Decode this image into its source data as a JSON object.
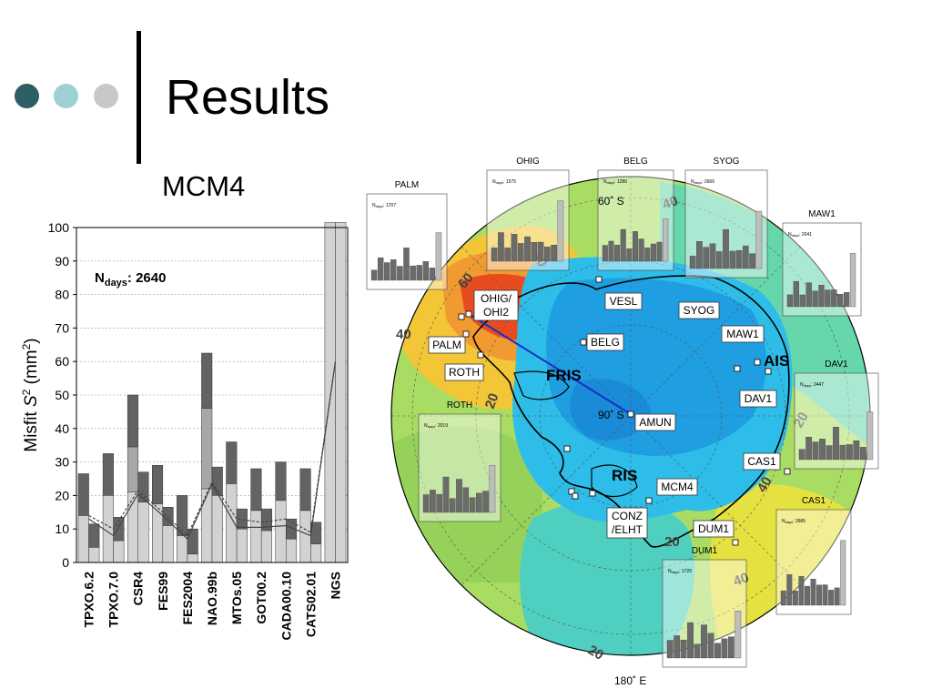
{
  "slide": {
    "title": "Results"
  },
  "chart_data": {
    "type": "bar",
    "title": "MCM4",
    "annotation": "N_days: 2640",
    "annotation_main": "N",
    "annotation_sub": "days",
    "annotation_rest": ": 2640",
    "ylabel": "Misfit S² (mm²)",
    "ylabel_main": "Misfit ",
    "ylabel_var": "S",
    "ylabel_sup": "2",
    "ylabel_units": " (mm",
    "ylabel_close": ")",
    "xlabel": "",
    "ylim": [
      0,
      100
    ],
    "yticks": [
      0,
      10,
      20,
      30,
      40,
      50,
      60,
      70,
      80,
      90,
      100
    ],
    "grid": true,
    "categories": [
      "TPXO.6.2",
      "TPXO.7.0",
      "CSR4",
      "FES99",
      "FES2004",
      "NAO.99b",
      "MTOs.05",
      "GOT00.2",
      "CADA00.10",
      "CATS02.01",
      "NGS"
    ],
    "series": [
      {
        "values": [
          [
            26.5,
            14,
            14
          ],
          [
            32.5,
            20,
            20
          ],
          [
            50,
            34.5,
            21
          ],
          [
            29,
            17.5,
            17.5
          ],
          [
            20,
            8,
            8
          ],
          [
            62.5,
            46,
            22
          ],
          [
            36,
            23.5,
            23.5
          ],
          [
            28,
            15.5,
            15.5
          ],
          [
            30,
            18.5,
            18.5
          ],
          [
            28,
            15.5,
            15.5
          ],
          [
            101.5,
            101.5,
            101.5
          ]
        ]
      },
      {
        "values": [
          [
            11.5,
            4.5,
            4.5
          ],
          [
            13.5,
            6.5,
            6.5
          ],
          [
            27,
            18,
            18
          ],
          [
            16.5,
            11,
            11
          ],
          [
            10,
            2.5,
            2.5
          ],
          [
            28.5,
            20,
            20
          ],
          [
            16,
            10,
            10
          ],
          [
            16,
            9.5,
            9.5
          ],
          [
            13,
            7,
            7
          ],
          [
            12,
            5.5,
            5.5
          ],
          [
            101.5,
            101.5,
            101.5
          ]
        ]
      }
    ],
    "lines": [
      {
        "style": "solid",
        "values": [
          13,
          8,
          20.5,
          14,
          7,
          23.5,
          10.5,
          10.5,
          11,
          8,
          60
        ]
      },
      {
        "style": "dashed",
        "values": [
          14,
          10,
          21.5,
          15,
          8,
          24,
          13,
          12,
          13,
          9,
          60
        ]
      }
    ]
  },
  "map": {
    "lat_labels": [
      "60˚ S",
      "90˚ S",
      "180˚ E"
    ],
    "contour_labels": [
      "60",
      "40",
      "40",
      "40",
      "20",
      "40",
      "20",
      "40",
      "20",
      "20"
    ],
    "region_labels": [
      "FRIS",
      "AIS",
      "RIS"
    ],
    "stations": [
      "OHIG/\nOHI2",
      "OHIG/",
      "OHI2",
      "PALM",
      "ROTH",
      "VESL",
      "BELG",
      "SYOG",
      "MAW1",
      "DAV1",
      "AMUN",
      "CAS1",
      "MCM4",
      "CONZ",
      "/ELHT",
      "DUM1"
    ],
    "inset_titles": [
      "PALM",
      "OHIG",
      "BELG",
      "SYOG",
      "MAW1",
      "ROTH",
      "DAV1",
      "CAS1",
      "DUM1"
    ],
    "inset_ndays": [
      "1707",
      "1575",
      "1280",
      "2666",
      "2041",
      "2019",
      "2447",
      "2685",
      "1720"
    ]
  }
}
